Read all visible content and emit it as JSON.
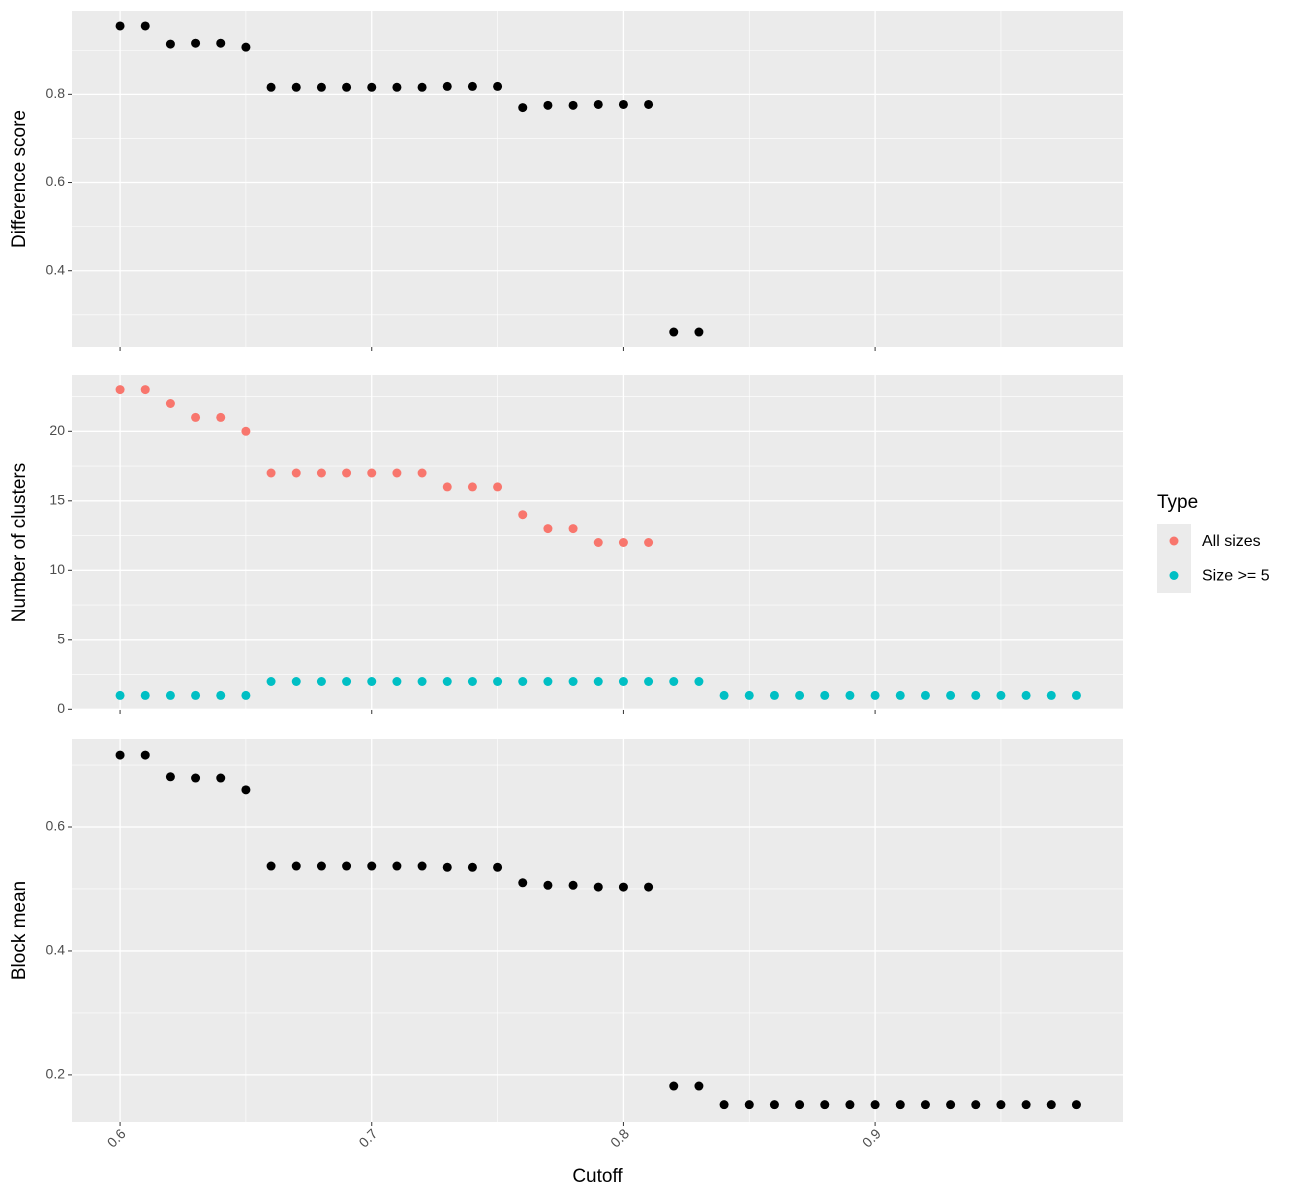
{
  "chart_data": [
    {
      "type": "scatter",
      "ylabel": "Difference score",
      "x": [
        0.6,
        0.61,
        0.62,
        0.63,
        0.64,
        0.65,
        0.66,
        0.67,
        0.68,
        0.69,
        0.7,
        0.71,
        0.72,
        0.73,
        0.74,
        0.75,
        0.76,
        0.77,
        0.78,
        0.79,
        0.8,
        0.81,
        0.82,
        0.83
      ],
      "values": [
        0.955,
        0.955,
        0.914,
        0.916,
        0.916,
        0.907,
        0.816,
        0.816,
        0.816,
        0.816,
        0.816,
        0.816,
        0.816,
        0.818,
        0.818,
        0.818,
        0.77,
        0.775,
        0.775,
        0.777,
        0.777,
        0.777,
        0.261,
        0.261
      ],
      "color": "#000000",
      "xlim": [
        0.5809,
        0.9985
      ],
      "xticks": [
        0.6,
        0.7,
        0.8,
        0.9
      ],
      "ylim": [
        0.227,
        0.989
      ],
      "yticks": [
        0.4,
        0.6,
        0.8
      ],
      "grid": true
    },
    {
      "type": "scatter",
      "ylabel": "Number of clusters",
      "x": [
        0.6,
        0.61,
        0.62,
        0.63,
        0.64,
        0.65,
        0.66,
        0.67,
        0.68,
        0.69,
        0.7,
        0.71,
        0.72,
        0.73,
        0.74,
        0.75,
        0.76,
        0.77,
        0.78,
        0.79,
        0.8,
        0.81,
        0.82,
        0.83,
        0.84,
        0.85,
        0.86,
        0.87,
        0.88,
        0.89,
        0.9,
        0.91,
        0.92,
        0.93,
        0.94,
        0.95,
        0.96,
        0.97,
        0.98
      ],
      "series": [
        {
          "name": "All sizes",
          "color": "#F8766D",
          "values": [
            23,
            23,
            22,
            21,
            21,
            20,
            17,
            17,
            17,
            17,
            17,
            17,
            17,
            16,
            16,
            16,
            14,
            13,
            13,
            12,
            12,
            12,
            null,
            null,
            null,
            null,
            null,
            null,
            null,
            null,
            null,
            null,
            null,
            null,
            null,
            null,
            null,
            null,
            null
          ]
        },
        {
          "name": "Size >= 5",
          "color": "#00BFC4",
          "values": [
            1,
            1,
            1,
            1,
            1,
            1,
            2,
            2,
            2,
            2,
            2,
            2,
            2,
            2,
            2,
            2,
            2,
            2,
            2,
            2,
            2,
            2,
            2,
            2,
            1,
            1,
            1,
            1,
            1,
            1,
            1,
            1,
            1,
            1,
            1,
            1,
            1,
            1,
            1
          ]
        }
      ],
      "legend_title": "Type",
      "legend": "right",
      "xlim": [
        0.5809,
        0.9985
      ],
      "xticks": [
        0.6,
        0.7,
        0.8,
        0.9
      ],
      "ylim": [
        -0.05,
        24.05
      ],
      "yticks": [
        0,
        5,
        10,
        15,
        20
      ],
      "grid": true
    },
    {
      "type": "scatter",
      "ylabel": "Block mean",
      "xlabel": "Cutoff",
      "x": [
        0.6,
        0.61,
        0.62,
        0.63,
        0.64,
        0.65,
        0.66,
        0.67,
        0.68,
        0.69,
        0.7,
        0.71,
        0.72,
        0.73,
        0.74,
        0.75,
        0.76,
        0.77,
        0.78,
        0.79,
        0.8,
        0.81,
        0.82,
        0.83,
        0.84,
        0.85,
        0.86,
        0.87,
        0.88,
        0.89,
        0.9,
        0.91,
        0.92,
        0.93,
        0.94,
        0.95,
        0.96,
        0.97,
        0.98
      ],
      "values": [
        0.716,
        0.716,
        0.681,
        0.679,
        0.679,
        0.66,
        0.537,
        0.537,
        0.537,
        0.537,
        0.537,
        0.537,
        0.537,
        0.535,
        0.535,
        0.535,
        0.51,
        0.506,
        0.506,
        0.503,
        0.503,
        0.503,
        0.182,
        0.182,
        0.152,
        0.152,
        0.152,
        0.152,
        0.152,
        0.152,
        0.152,
        0.152,
        0.152,
        0.152,
        0.152,
        0.152,
        0.152,
        0.152,
        0.152
      ],
      "color": "#000000",
      "xlim": [
        0.5809,
        0.9985
      ],
      "xticks": [
        0.6,
        0.7,
        0.8,
        0.9
      ],
      "ylim": [
        0.124,
        0.742
      ],
      "yticks": [
        0.2,
        0.4,
        0.6
      ],
      "grid": true
    }
  ]
}
